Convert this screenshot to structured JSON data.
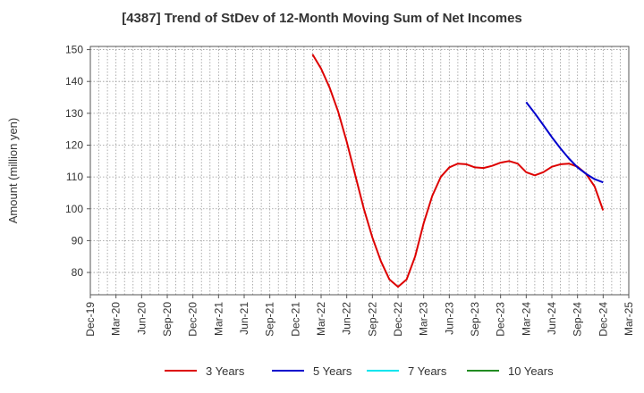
{
  "chart_data": {
    "type": "line",
    "title": "[4387]  Trend of StDev of 12-Month Moving Sum of Net Incomes",
    "ylabel": "Amount (million yen)",
    "xlabel": "",
    "ylim": [
      73,
      151
    ],
    "yticks": [
      80,
      90,
      100,
      110,
      120,
      130,
      140,
      150
    ],
    "xlim": [
      "2019-12",
      "2025-03"
    ],
    "xticks": [
      "Dec-19",
      "Mar-20",
      "Jun-20",
      "Sep-20",
      "Dec-20",
      "Mar-21",
      "Jun-21",
      "Sep-21",
      "Dec-21",
      "Mar-22",
      "Jun-22",
      "Sep-22",
      "Dec-22",
      "Mar-23",
      "Jun-23",
      "Sep-23",
      "Dec-23",
      "Mar-24",
      "Jun-24",
      "Sep-24",
      "Dec-24",
      "Mar-25"
    ],
    "grid": true,
    "legend_position": "bottom",
    "series": [
      {
        "name": "3 Years",
        "color": "#dd0000",
        "x": [
          "2022-02",
          "2022-03",
          "2022-04",
          "2022-05",
          "2022-06",
          "2022-07",
          "2022-08",
          "2022-09",
          "2022-10",
          "2022-11",
          "2022-12",
          "2023-01",
          "2023-02",
          "2023-03",
          "2023-04",
          "2023-05",
          "2023-06",
          "2023-07",
          "2023-08",
          "2023-09",
          "2023-10",
          "2023-11",
          "2023-12",
          "2024-01",
          "2024-02",
          "2024-03",
          "2024-04",
          "2024-05",
          "2024-06",
          "2024-07",
          "2024-08",
          "2024-09",
          "2024-10",
          "2024-11",
          "2024-12"
        ],
        "values": [
          148.5,
          144,
          138,
          130.5,
          121,
          110.5,
          100,
          91,
          83.5,
          77.8,
          75.5,
          77.8,
          85,
          95.5,
          104,
          110,
          113,
          114.2,
          114,
          113,
          112.8,
          113.5,
          114.5,
          115,
          114.2,
          111.5,
          110.5,
          111.5,
          113.2,
          114,
          114.2,
          113.2,
          111,
          107,
          99.5
        ]
      },
      {
        "name": "5 Years",
        "color": "#0000cc",
        "x": [
          "2024-03",
          "2024-04",
          "2024-05",
          "2024-06",
          "2024-07",
          "2024-08",
          "2024-09",
          "2024-10",
          "2024-11",
          "2024-12"
        ],
        "values": [
          133.5,
          130,
          126.3,
          122.5,
          119,
          115.8,
          113,
          111,
          109.3,
          108.3
        ]
      },
      {
        "name": "7 Years",
        "color": "#00e5ee",
        "x": [],
        "values": []
      },
      {
        "name": "10 Years",
        "color": "#228b22",
        "x": [],
        "values": []
      }
    ]
  }
}
